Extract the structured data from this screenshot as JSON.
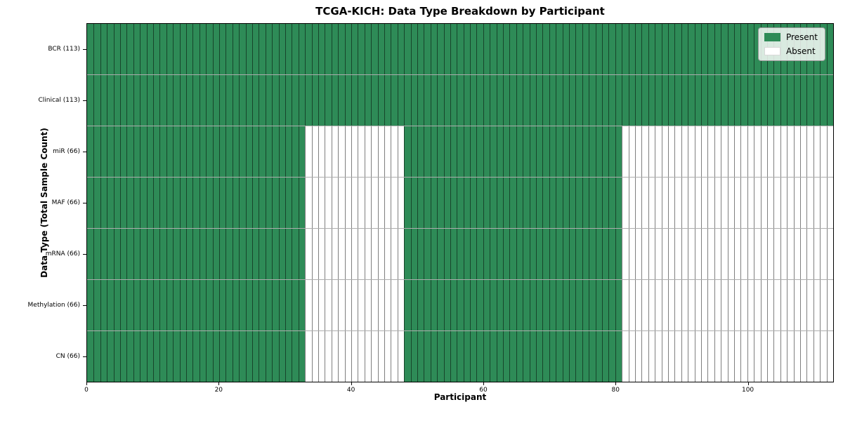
{
  "colors": {
    "present": "#2e8b57",
    "absent": "#ffffff",
    "cell_edge": "rgba(0,0,0,0.5)",
    "row_edge": "rgba(0,0,0,0.32)",
    "plot_border": "#000000",
    "legend_border": "#9a9a9a"
  },
  "chart_data": {
    "type": "heatmap",
    "title": "TCGA-KICH: Data Type Breakdown by Participant",
    "xlabel": "Participant",
    "ylabel": "Data Type (Total Sample Count)",
    "n_participants": 113,
    "x_range": [
      0,
      113
    ],
    "x_ticks": [
      0,
      20,
      40,
      60,
      80,
      100
    ],
    "legend": [
      "Present",
      "Absent"
    ],
    "legend_position": "upper right",
    "grid": true,
    "rows": [
      {
        "label": "BCR (113)",
        "data_type": "BCR",
        "total": 113,
        "present_ranges": [
          [
            0,
            113
          ]
        ]
      },
      {
        "label": "Clinical (113)",
        "data_type": "Clinical",
        "total": 113,
        "present_ranges": [
          [
            0,
            113
          ]
        ]
      },
      {
        "label": "miR (66)",
        "data_type": "miR",
        "total": 66,
        "present_ranges": [
          [
            0,
            33
          ],
          [
            48,
            81
          ]
        ]
      },
      {
        "label": "MAF (66)",
        "data_type": "MAF",
        "total": 66,
        "present_ranges": [
          [
            0,
            33
          ],
          [
            48,
            81
          ]
        ]
      },
      {
        "label": "mRNA (66)",
        "data_type": "mRNA",
        "total": 66,
        "present_ranges": [
          [
            0,
            33
          ],
          [
            48,
            81
          ]
        ]
      },
      {
        "label": "Methylation (66)",
        "data_type": "Methylation",
        "total": 66,
        "present_ranges": [
          [
            0,
            33
          ],
          [
            48,
            81
          ]
        ]
      },
      {
        "label": "CN (66)",
        "data_type": "CN",
        "total": 66,
        "present_ranges": [
          [
            0,
            33
          ],
          [
            48,
            81
          ]
        ]
      }
    ]
  }
}
